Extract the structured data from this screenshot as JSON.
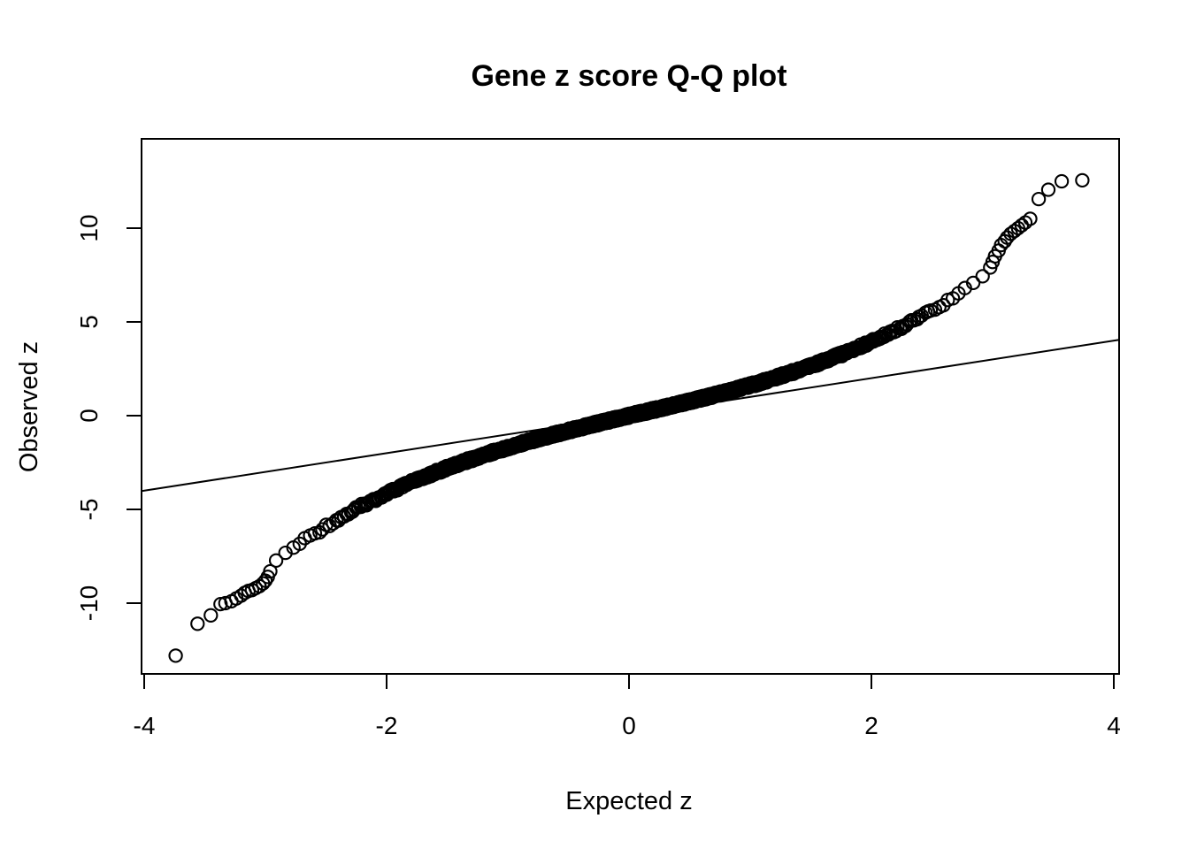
{
  "chart_data": {
    "type": "scatter",
    "subtype": "qq-plot",
    "title": "Gene z score Q-Q plot",
    "xlabel": "Expected z",
    "ylabel": "Observed z",
    "x_ticks": [
      -4,
      -2,
      0,
      2,
      4
    ],
    "y_ticks": [
      -10,
      -5,
      0,
      5,
      10
    ],
    "xlim": [
      -4.02,
      4.04
    ],
    "ylim": [
      -13.9,
      14.8
    ],
    "grid": "off",
    "legend": "none",
    "marker": "open-circle",
    "marker_color": "#000000",
    "reference_line": {
      "slope": 1,
      "intercept": 0,
      "color": "#000000"
    },
    "curve_model": {
      "description": "Observed z as smooth odd S-curve of Expected z for dense band |e| <= extent; o = linear_coef*e + cubic_coef*e^3, negative side scaled by negative_scale",
      "linear_coef": 1.5,
      "cubic_coef": 0.12,
      "negative_scale": 1.05,
      "extent": 2.95,
      "n_points": 2000
    },
    "centerline_samples": {
      "expected": [
        0,
        0.5,
        1.0,
        1.5,
        2.0,
        2.5,
        2.9
      ],
      "observed_positive": [
        0,
        0.77,
        1.62,
        2.66,
        3.96,
        5.63,
        7.12
      ],
      "observed_negative": [
        0,
        -0.8,
        -1.7,
        -2.79,
        -4.16,
        -5.91,
        -7.48
      ]
    },
    "upper_tail_points": [
      [
        2.98,
        7.9
      ],
      [
        3.0,
        8.2
      ],
      [
        3.02,
        8.5
      ],
      [
        3.05,
        8.8
      ],
      [
        3.07,
        9.1
      ],
      [
        3.1,
        9.3
      ],
      [
        3.12,
        9.5
      ],
      [
        3.15,
        9.7
      ],
      [
        3.18,
        9.85
      ],
      [
        3.21,
        10.0
      ],
      [
        3.24,
        10.15
      ],
      [
        3.27,
        10.3
      ],
      [
        3.31,
        10.5
      ],
      [
        3.38,
        11.55
      ],
      [
        3.46,
        12.05
      ],
      [
        3.57,
        12.5
      ],
      [
        3.74,
        12.55
      ]
    ],
    "lower_tail_points": [
      [
        -2.96,
        -8.3
      ],
      [
        -2.98,
        -8.6
      ],
      [
        -3.0,
        -8.8
      ],
      [
        -3.02,
        -8.95
      ],
      [
        -3.05,
        -9.1
      ],
      [
        -3.08,
        -9.2
      ],
      [
        -3.11,
        -9.3
      ],
      [
        -3.14,
        -9.35
      ],
      [
        -3.17,
        -9.45
      ],
      [
        -3.2,
        -9.6
      ],
      [
        -3.24,
        -9.75
      ],
      [
        -3.28,
        -9.9
      ],
      [
        -3.33,
        -10.0
      ],
      [
        -3.37,
        -10.05
      ],
      [
        -3.45,
        -10.65
      ],
      [
        -3.56,
        -11.1
      ],
      [
        -3.74,
        -12.8
      ]
    ]
  }
}
